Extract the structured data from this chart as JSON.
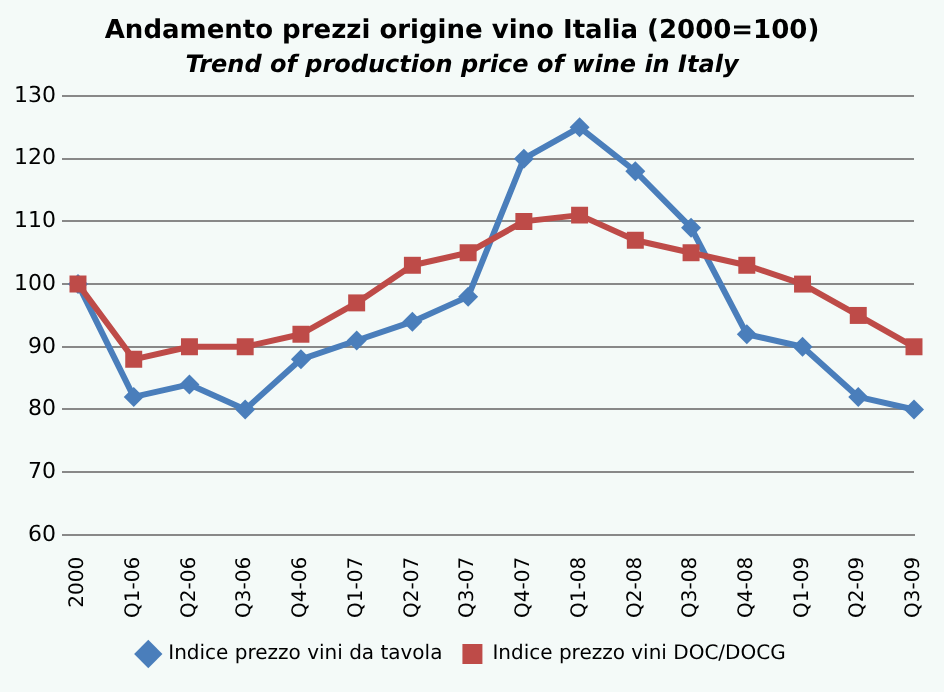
{
  "chart_data": {
    "type": "line",
    "title": "Andamento prezzi origine vino Italia (2000=100)",
    "subtitle": "Trend of production price of wine in Italy",
    "categories": [
      "2000",
      "Q1-06",
      "Q2-06",
      "Q3-06",
      "Q4-06",
      "Q1-07",
      "Q2-07",
      "Q3-07",
      "Q4-07",
      "Q1-08",
      "Q2-08",
      "Q3-08",
      "Q4-08",
      "Q1-09",
      "Q2-09",
      "Q3-09"
    ],
    "series": [
      {
        "name": "Indice prezzo vini da tavola",
        "color": "#4a7ebb",
        "marker": "diamond",
        "values": [
          100,
          82,
          84,
          80,
          88,
          91,
          94,
          98,
          120,
          125,
          118,
          109,
          92,
          90,
          82,
          80
        ]
      },
      {
        "name": "Indice prezzo vini DOC/DOCG",
        "color": "#be4b48",
        "marker": "square",
        "values": [
          100,
          88,
          90,
          90,
          92,
          97,
          103,
          105,
          110,
          111,
          107,
          105,
          103,
          100,
          95,
          90
        ]
      }
    ],
    "ylim": [
      60,
      130
    ],
    "yticks": [
      60,
      70,
      80,
      90,
      100,
      110,
      120,
      130
    ],
    "grid": "y",
    "legend": "bottom"
  }
}
